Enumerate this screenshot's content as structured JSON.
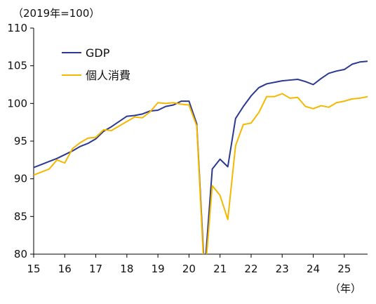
{
  "chart_data": {
    "type": "line",
    "unit_label": "（2019年=100）",
    "x_unit_label": "（年）",
    "xlim": [
      2015,
      2025.75
    ],
    "ylim": [
      80,
      110
    ],
    "y_ticks": [
      80,
      85,
      90,
      95,
      100,
      105,
      110
    ],
    "x_ticks": [
      {
        "value": 2015,
        "label": "15"
      },
      {
        "value": 2016,
        "label": "16"
      },
      {
        "value": 2017,
        "label": "17"
      },
      {
        "value": 2018,
        "label": "18"
      },
      {
        "value": 2019,
        "label": "19"
      },
      {
        "value": 2020,
        "label": "20"
      },
      {
        "value": 2021,
        "label": "21"
      },
      {
        "value": 2022,
        "label": "22"
      },
      {
        "value": 2023,
        "label": "23"
      },
      {
        "value": 2024,
        "label": "24"
      },
      {
        "value": 2025,
        "label": "25"
      }
    ],
    "grid": false,
    "legend_position": "top-left",
    "series": [
      {
        "name": "GDP",
        "color": "#2b3990",
        "points": [
          [
            2015.0,
            91.5
          ],
          [
            2015.25,
            91.9
          ],
          [
            2015.5,
            92.3
          ],
          [
            2015.75,
            92.7
          ],
          [
            2016.0,
            93.2
          ],
          [
            2016.25,
            93.7
          ],
          [
            2016.5,
            94.3
          ],
          [
            2016.75,
            94.7
          ],
          [
            2017.0,
            95.3
          ],
          [
            2017.25,
            96.3
          ],
          [
            2017.5,
            96.9
          ],
          [
            2017.75,
            97.6
          ],
          [
            2018.0,
            98.3
          ],
          [
            2018.25,
            98.4
          ],
          [
            2018.5,
            98.6
          ],
          [
            2018.75,
            99.0
          ],
          [
            2019.0,
            99.1
          ],
          [
            2019.25,
            99.6
          ],
          [
            2019.5,
            99.8
          ],
          [
            2019.75,
            100.3
          ],
          [
            2020.0,
            100.3
          ],
          [
            2020.25,
            97.3
          ],
          [
            2020.5,
            77.5
          ],
          [
            2020.75,
            91.3
          ],
          [
            2021.0,
            92.6
          ],
          [
            2021.25,
            91.6
          ],
          [
            2021.5,
            98.0
          ],
          [
            2021.75,
            99.6
          ],
          [
            2022.0,
            101.0
          ],
          [
            2022.25,
            102.1
          ],
          [
            2022.5,
            102.6
          ],
          [
            2022.75,
            102.8
          ],
          [
            2023.0,
            103.0
          ],
          [
            2023.25,
            103.1
          ],
          [
            2023.5,
            103.2
          ],
          [
            2023.75,
            102.9
          ],
          [
            2024.0,
            102.5
          ],
          [
            2024.25,
            103.3
          ],
          [
            2024.5,
            104.0
          ],
          [
            2024.75,
            104.3
          ],
          [
            2025.0,
            104.5
          ],
          [
            2025.25,
            105.2
          ],
          [
            2025.5,
            105.5
          ],
          [
            2025.75,
            105.6
          ]
        ]
      },
      {
        "name": "個人消費",
        "color": "#f5b800",
        "points": [
          [
            2015.0,
            90.5
          ],
          [
            2015.25,
            90.9
          ],
          [
            2015.5,
            91.3
          ],
          [
            2015.75,
            92.5
          ],
          [
            2016.0,
            92.1
          ],
          [
            2016.25,
            94.0
          ],
          [
            2016.5,
            94.8
          ],
          [
            2016.75,
            95.4
          ],
          [
            2017.0,
            95.5
          ],
          [
            2017.25,
            96.5
          ],
          [
            2017.5,
            96.4
          ],
          [
            2017.75,
            97.0
          ],
          [
            2018.0,
            97.6
          ],
          [
            2018.25,
            98.2
          ],
          [
            2018.5,
            98.1
          ],
          [
            2018.75,
            98.9
          ],
          [
            2019.0,
            100.1
          ],
          [
            2019.25,
            100.0
          ],
          [
            2019.5,
            100.1
          ],
          [
            2019.75,
            99.9
          ],
          [
            2020.0,
            99.8
          ],
          [
            2020.25,
            97.0
          ],
          [
            2020.5,
            76.5
          ],
          [
            2020.75,
            89.1
          ],
          [
            2021.0,
            87.8
          ],
          [
            2021.25,
            84.6
          ],
          [
            2021.5,
            94.4
          ],
          [
            2021.75,
            97.2
          ],
          [
            2022.0,
            97.4
          ],
          [
            2022.25,
            98.8
          ],
          [
            2022.5,
            100.9
          ],
          [
            2022.75,
            100.9
          ],
          [
            2023.0,
            101.3
          ],
          [
            2023.25,
            100.7
          ],
          [
            2023.5,
            100.8
          ],
          [
            2023.75,
            99.6
          ],
          [
            2024.0,
            99.3
          ],
          [
            2024.25,
            99.7
          ],
          [
            2024.5,
            99.5
          ],
          [
            2024.75,
            100.1
          ],
          [
            2025.0,
            100.3
          ],
          [
            2025.25,
            100.6
          ],
          [
            2025.5,
            100.7
          ],
          [
            2025.75,
            100.9
          ]
        ]
      }
    ]
  }
}
